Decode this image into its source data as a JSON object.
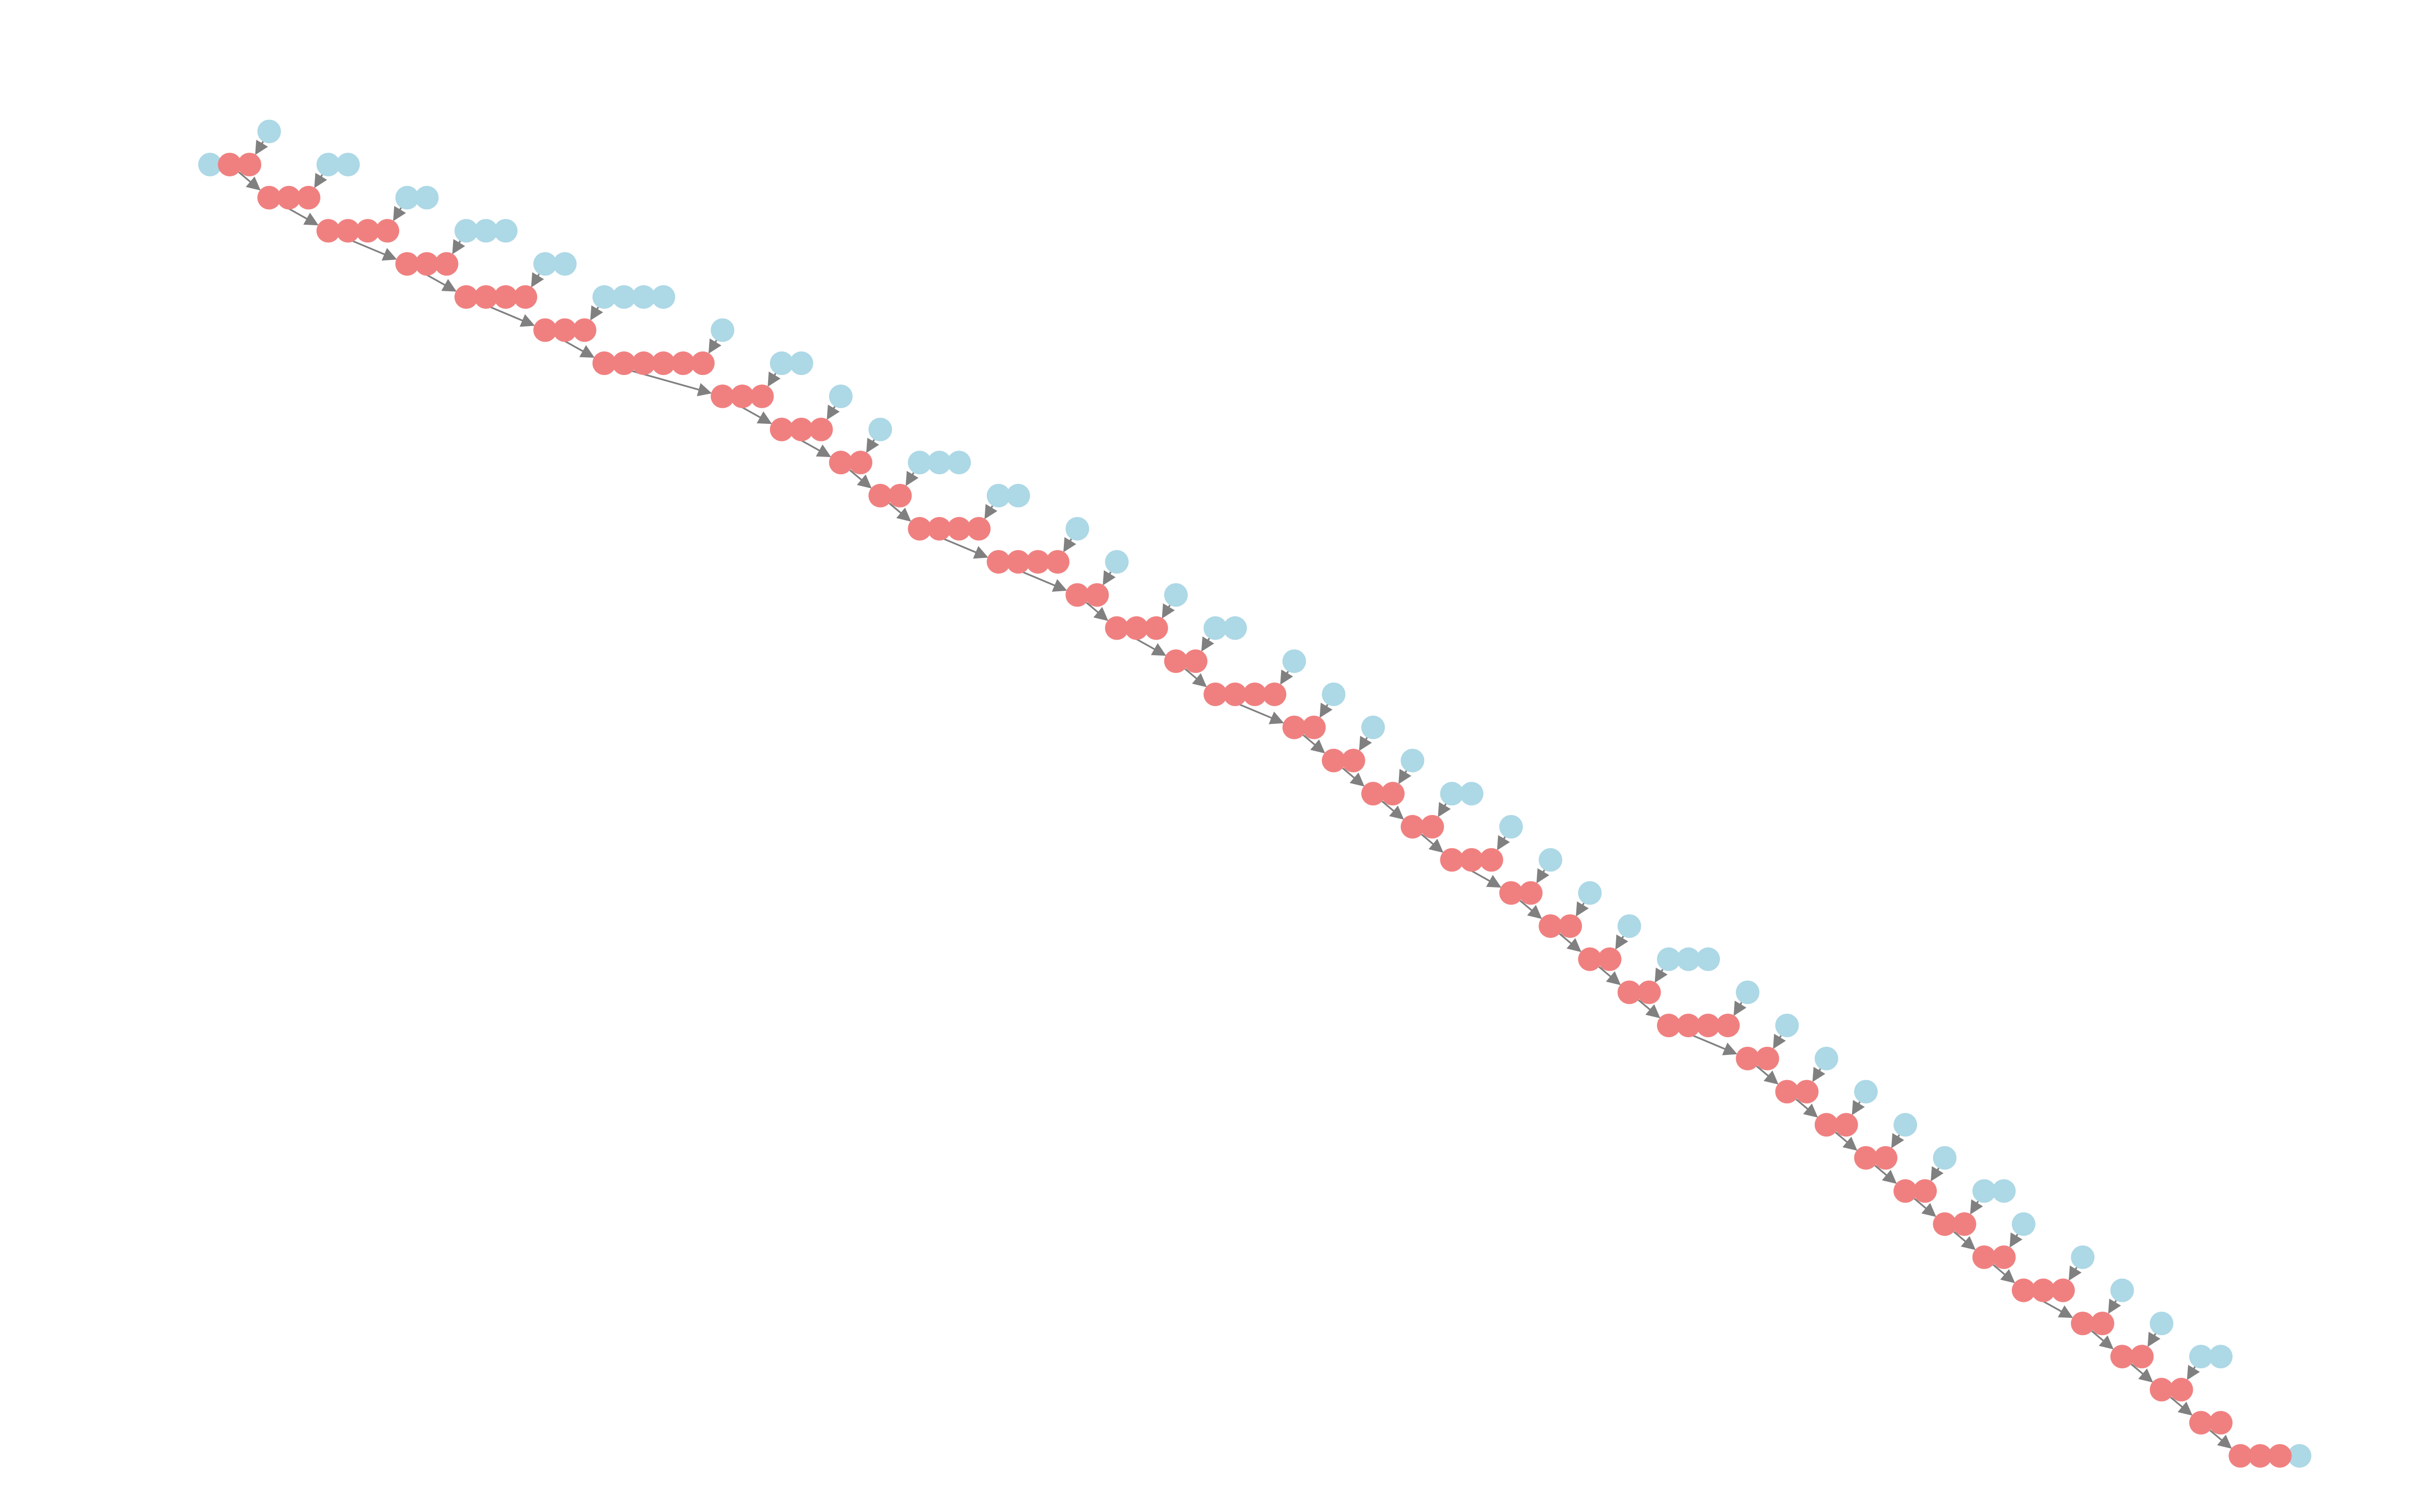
{
  "diagram": {
    "type": "directed-graph",
    "node_colors": {
      "main": "#f08080",
      "branch": "#add8e6"
    },
    "edge_color": "#808080",
    "rows": [
      {
        "main": 2,
        "branch": 1
      },
      {
        "main": 3,
        "branch": 2
      },
      {
        "main": 4,
        "branch": 2
      },
      {
        "main": 3,
        "branch": 3
      },
      {
        "main": 4,
        "branch": 2
      },
      {
        "main": 3,
        "branch": 4
      },
      {
        "main": 6,
        "branch": 1
      },
      {
        "main": 3,
        "branch": 2
      },
      {
        "main": 3,
        "branch": 1
      },
      {
        "main": 2,
        "branch": 1
      },
      {
        "main": 2,
        "branch": 3
      },
      {
        "main": 4,
        "branch": 2
      },
      {
        "main": 4,
        "branch": 1
      },
      {
        "main": 2,
        "branch": 1
      },
      {
        "main": 3,
        "branch": 1
      },
      {
        "main": 2,
        "branch": 2
      },
      {
        "main": 4,
        "branch": 1
      },
      {
        "main": 2,
        "branch": 1
      },
      {
        "main": 2,
        "branch": 1
      },
      {
        "main": 2,
        "branch": 1
      },
      {
        "main": 2,
        "branch": 2
      },
      {
        "main": 3,
        "branch": 1
      },
      {
        "main": 2,
        "branch": 1
      },
      {
        "main": 2,
        "branch": 1
      },
      {
        "main": 2,
        "branch": 1
      },
      {
        "main": 2,
        "branch": 3
      },
      {
        "main": 4,
        "branch": 1
      },
      {
        "main": 2,
        "branch": 1
      },
      {
        "main": 2,
        "branch": 1
      },
      {
        "main": 2,
        "branch": 1
      },
      {
        "main": 2,
        "branch": 1
      },
      {
        "main": 2,
        "branch": 1
      },
      {
        "main": 2,
        "branch": 2
      },
      {
        "main": 2,
        "branch": 1
      },
      {
        "main": 3,
        "branch": 1
      },
      {
        "main": 2,
        "branch": 1
      },
      {
        "main": 2,
        "branch": 1
      },
      {
        "main": 2,
        "branch": 2
      },
      {
        "main": 2,
        "branch": 0
      },
      {
        "main": 3,
        "branch": 1
      }
    ]
  }
}
